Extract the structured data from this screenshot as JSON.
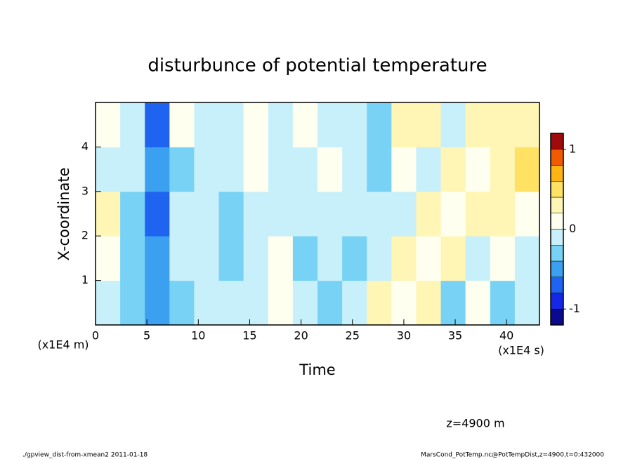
{
  "chart_data": {
    "type": "heatmap",
    "title": "disturbunce of potential temperature",
    "x_label": "Time",
    "y_label": "X-coordinate",
    "x_unit": "(x1E4 s)",
    "y_unit": "(x1E4 m)",
    "annotation": "z=4900 m",
    "footer_left": "./gpview_dist-from-xmean2  2011-01-18",
    "footer_right": "MarsCond_PotTemp.nc@PotTempDist,z=4900,t=0:432000",
    "xlim": [
      0,
      43.2
    ],
    "ylim": [
      0,
      5
    ],
    "xticks": [
      0,
      5,
      10,
      15,
      20,
      25,
      30,
      35,
      40
    ],
    "yticks": [
      1,
      2,
      3,
      4
    ],
    "x": [
      1.2,
      3.6,
      6.0,
      8.4,
      10.8,
      13.2,
      15.6,
      18.0,
      20.4,
      22.8,
      25.2,
      27.6,
      30.0,
      32.4,
      34.8,
      37.2,
      39.6,
      42.0
    ],
    "y": [
      0.5,
      1.5,
      2.5,
      3.5,
      4.5
    ],
    "values": [
      [
        -0.1,
        -0.3,
        -0.5,
        -0.3,
        -0.1,
        -0.2,
        -0.1,
        0.1,
        -0.2,
        -0.3,
        -0.2,
        0.2,
        0.1,
        0.2,
        -0.3,
        0.1,
        -0.4,
        -0.2
      ],
      [
        0.1,
        -0.3,
        -0.6,
        -0.2,
        -0.2,
        -0.3,
        -0.2,
        0.0,
        -0.4,
        -0.1,
        -0.3,
        -0.1,
        0.2,
        0.1,
        0.3,
        -0.2,
        0.1,
        -0.2
      ],
      [
        0.2,
        -0.4,
        -0.7,
        -0.1,
        -0.1,
        -0.4,
        -0.1,
        -0.2,
        -0.1,
        -0.2,
        -0.1,
        -0.2,
        -0.1,
        0.2,
        0.1,
        0.3,
        0.2,
        0.1
      ],
      [
        -0.1,
        -0.2,
        -0.6,
        -0.3,
        -0.2,
        -0.1,
        0.0,
        -0.1,
        -0.2,
        0.1,
        -0.2,
        -0.3,
        0.1,
        -0.2,
        0.2,
        0.1,
        0.3,
        0.4
      ],
      [
        0.1,
        -0.2,
        -0.7,
        0.1,
        -0.2,
        -0.1,
        0.1,
        -0.1,
        0.0,
        -0.2,
        -0.1,
        -0.4,
        0.3,
        0.2,
        -0.1,
        0.3,
        0.3,
        0.2
      ]
    ],
    "levels": [
      -1.2,
      -1.0,
      -0.8,
      -0.6,
      -0.4,
      -0.2,
      0,
      0.2,
      0.4,
      0.6,
      0.8,
      1.0,
      1.2
    ],
    "colors": [
      "#0a0a8c",
      "#1428e6",
      "#1e64f0",
      "#3ca0f0",
      "#78d2f5",
      "#c8f0fa",
      "#fffff0",
      "#fff5b4",
      "#ffe164",
      "#ffb414",
      "#f05a00",
      "#a00a0a"
    ],
    "colorbar_ticks": [
      -1,
      0,
      1
    ]
  }
}
